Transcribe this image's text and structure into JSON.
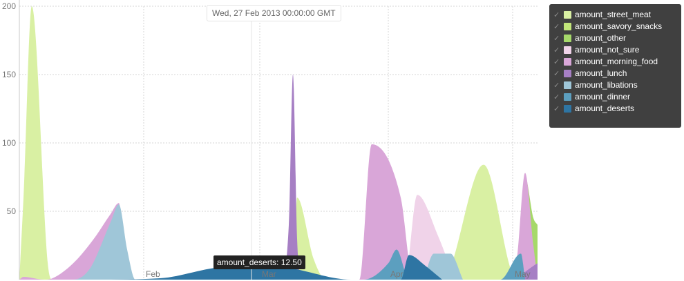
{
  "chart_data": {
    "type": "area",
    "y_ticks": [
      200,
      150,
      100,
      50
    ],
    "x_ticks": [
      "Feb",
      "Mar",
      "Apr",
      "May"
    ],
    "x_tick_dates": [
      "2013-02-01",
      "2013-03-01",
      "2013-04-01",
      "2013-05-01"
    ],
    "ylim": [
      0,
      200
    ],
    "xlim": [
      "2013-01-02",
      "2013-05-07"
    ],
    "grid": true,
    "legend_position": "right",
    "hover_date": "Wed, 27 Feb 2013 00:00:00 GMT",
    "hover_marker": {
      "date": "2013-02-27",
      "value": 12.5
    },
    "tooltip": "amount_deserts: 12.50",
    "series": [
      {
        "name": "amount_street_meat",
        "color": "#d9f0a3",
        "x": [
          "2013-01-02",
          "2013-01-03",
          "2013-01-05",
          "2013-01-09",
          "2013-01-10",
          "2013-03-09",
          "2013-03-10",
          "2013-03-14",
          "2013-03-17",
          "2013-04-14",
          "2013-04-24",
          "2013-05-02",
          "2013-05-05"
        ],
        "y": [
          0,
          60,
          200,
          8,
          0,
          0,
          60,
          15,
          0,
          0,
          84,
          0,
          0
        ]
      },
      {
        "name": "amount_savory_snacks",
        "color": "#c2e67a",
        "x": [
          "2013-01-02",
          "2013-05-04",
          "2013-05-05",
          "2013-05-06",
          "2013-05-07"
        ],
        "y": [
          0,
          0,
          30,
          15,
          8
        ]
      },
      {
        "name": "amount_other",
        "color": "#a6d96a",
        "x": [
          "2013-01-02",
          "2013-05-03",
          "2013-05-04",
          "2013-05-06",
          "2013-05-07"
        ],
        "y": [
          0,
          0,
          75,
          45,
          40
        ]
      },
      {
        "name": "amount_not_sure",
        "color": "#f0d3e9",
        "x": [
          "2013-01-02",
          "2013-04-05",
          "2013-04-08",
          "2013-04-13",
          "2013-04-17"
        ],
        "y": [
          0,
          0,
          62,
          32,
          0
        ]
      },
      {
        "name": "amount_morning_food",
        "color": "#d9a6d8",
        "x": [
          "2013-01-02",
          "2013-01-03",
          "2013-01-08",
          "2013-01-10",
          "2013-01-15",
          "2013-01-20",
          "2013-01-24",
          "2013-01-26",
          "2013-01-28",
          "2013-03-25",
          "2013-03-28",
          "2013-04-04",
          "2013-04-07",
          "2013-04-30",
          "2013-05-02",
          "2013-05-04",
          "2013-05-06",
          "2013-05-07"
        ],
        "y": [
          0,
          2,
          0,
          1,
          12,
          30,
          48,
          56,
          0,
          0,
          99,
          60,
          0,
          0,
          15,
          78,
          25,
          0
        ]
      },
      {
        "name": "amount_lunch",
        "color": "#a67fc4",
        "x": [
          "2013-01-02",
          "2013-03-06",
          "2013-03-08",
          "2013-03-09",
          "2013-03-10",
          "2013-03-11",
          "2013-04-30",
          "2013-05-07"
        ],
        "y": [
          0,
          0,
          40,
          150,
          30,
          0,
          0,
          12
        ]
      },
      {
        "name": "amount_libations",
        "color": "#9fc6d8",
        "x": [
          "2013-01-02",
          "2013-01-15",
          "2013-01-19",
          "2013-01-24",
          "2013-01-26",
          "2013-01-28",
          "2013-01-30",
          "2013-04-09",
          "2013-04-12",
          "2013-04-16",
          "2013-04-19"
        ],
        "y": [
          0,
          0,
          8,
          42,
          55,
          22,
          0,
          0,
          19,
          19,
          0
        ]
      },
      {
        "name": "amount_dinner",
        "color": "#5c9fbf",
        "x": [
          "2013-01-02",
          "2013-03-26",
          "2013-04-01",
          "2013-04-03",
          "2013-04-06",
          "2013-04-28",
          "2013-05-03",
          "2013-05-04"
        ],
        "y": [
          0,
          0,
          12,
          22,
          0,
          0,
          19,
          0
        ]
      },
      {
        "name": "amount_deserts",
        "color": "#2e75a3",
        "x": [
          "2013-01-02",
          "2013-01-20",
          "2013-02-05",
          "2013-02-17",
          "2013-02-27",
          "2013-03-09",
          "2013-03-23",
          "2013-04-04",
          "2013-04-06",
          "2013-04-10",
          "2013-04-14"
        ],
        "y": [
          0,
          0,
          1,
          8,
          12.5,
          8,
          0,
          0,
          18,
          10,
          0
        ]
      }
    ]
  }
}
